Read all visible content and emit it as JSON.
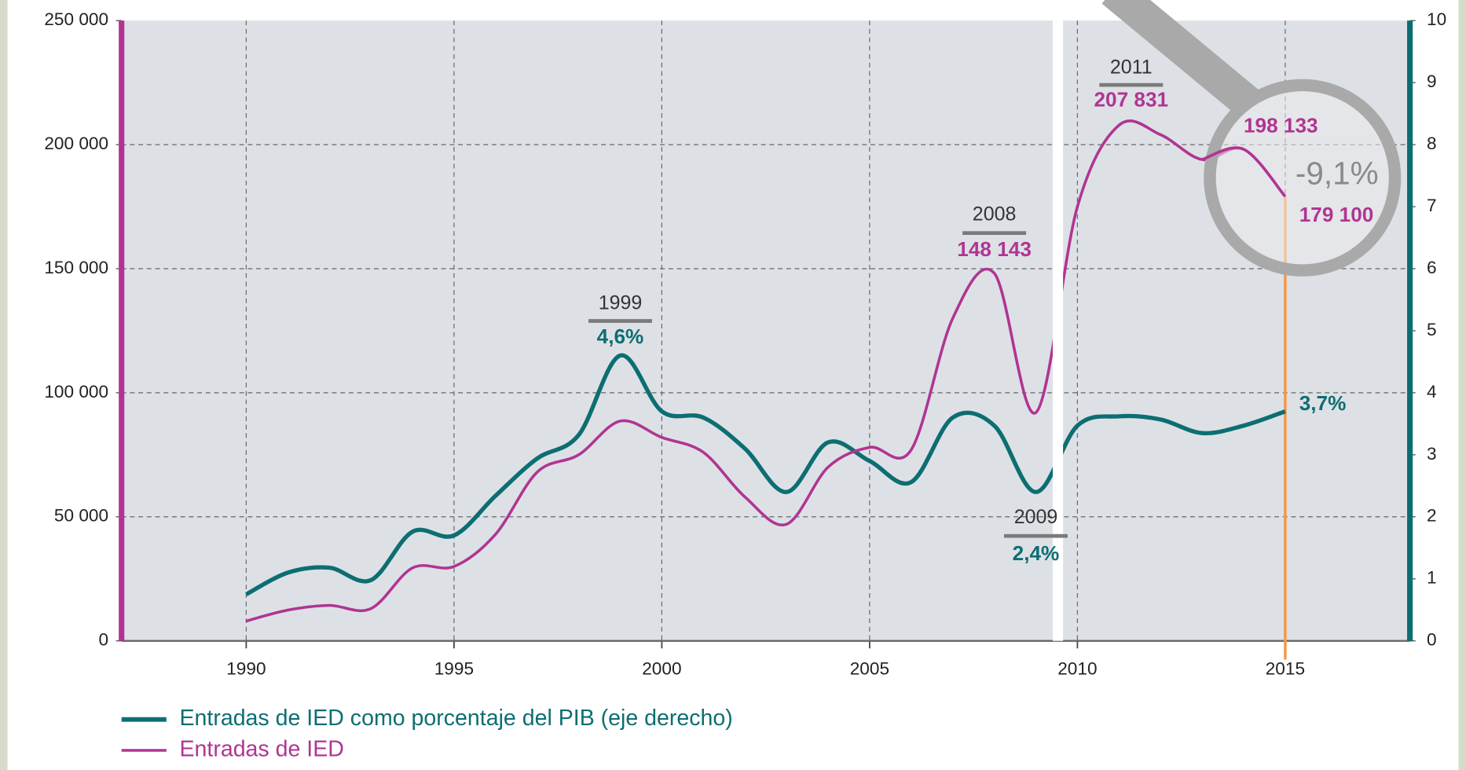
{
  "chart_data": {
    "type": "line",
    "x": [
      1990,
      1991,
      1992,
      1993,
      1994,
      1995,
      1996,
      1997,
      1998,
      1999,
      2000,
      2001,
      2002,
      2003,
      2004,
      2005,
      2006,
      2007,
      2008,
      2009,
      2010,
      2011,
      2012,
      2013,
      2014,
      2015
    ],
    "series": [
      {
        "name": "Entradas de IED como porcentaje del PIB (eje derecho)",
        "color": "#0d6e72",
        "axis": "y2",
        "values": [
          0.75,
          1.1,
          1.18,
          0.98,
          1.76,
          1.7,
          2.34,
          2.94,
          3.32,
          4.6,
          3.7,
          3.6,
          3.1,
          2.4,
          3.2,
          2.9,
          2.56,
          3.6,
          3.47,
          2.4,
          3.47,
          3.62,
          3.57,
          3.35,
          3.47,
          3.7
        ],
        "value_labels": [
          null,
          null,
          null,
          null,
          null,
          null,
          null,
          null,
          null,
          "4,6%",
          null,
          null,
          null,
          null,
          null,
          null,
          null,
          null,
          null,
          "2,4%",
          null,
          null,
          null,
          null,
          null,
          "3,7%"
        ]
      },
      {
        "name": "Entradas de IED",
        "color": "#b03592",
        "values": [
          8000,
          12400,
          14300,
          13000,
          29400,
          30000,
          43000,
          68000,
          75000,
          88600,
          82000,
          76000,
          58000,
          47000,
          70000,
          78000,
          77000,
          130000,
          148143,
          92000,
          175000,
          207831,
          204000,
          194000,
          198133,
          179100
        ],
        "value_labels": [
          null,
          null,
          null,
          null,
          null,
          null,
          null,
          null,
          null,
          null,
          null,
          null,
          null,
          null,
          null,
          null,
          null,
          null,
          "148 143",
          null,
          null,
          "207 831",
          null,
          null,
          "198 133",
          "179 100"
        ]
      }
    ],
    "annotation": "-9,1%",
    "xlim": [
      1987,
      2018
    ],
    "xticks": [
      1990,
      1995,
      2000,
      2005,
      2010,
      2015
    ],
    "ylim": [
      0,
      250000
    ],
    "yticks": [
      0,
      {
        "value": 50000,
        "label": "50 000"
      },
      {
        "value": 100000,
        "label": "100 000"
      },
      {
        "value": 150000,
        "label": "150 000"
      },
      {
        "value": 200000,
        "label": "200 000"
      },
      {
        "value": 250000,
        "label": "250 000"
      }
    ],
    "y2lim": [
      0,
      10
    ],
    "y2ticks": [
      0,
      1,
      2,
      3,
      4,
      5,
      6,
      7,
      8,
      9,
      10
    ],
    "grid": true
  }
}
